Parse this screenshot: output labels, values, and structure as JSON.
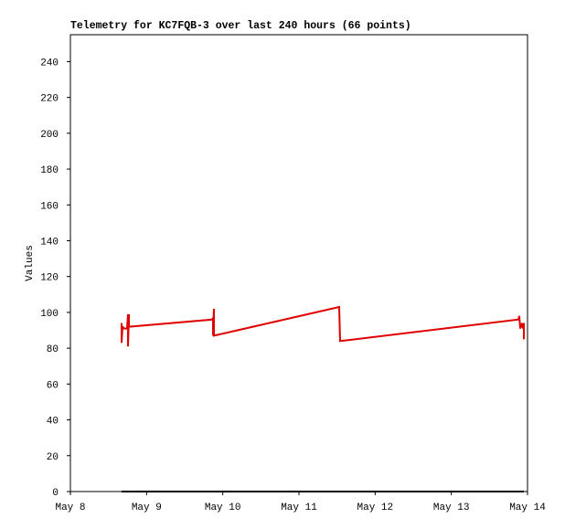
{
  "chart_data": {
    "type": "line",
    "title": "Telemetry for KC7FQB-3 over last 240 hours (66 points)",
    "y_label": "Values",
    "xlim": [
      8,
      14
    ],
    "xticks": [
      {
        "value": 8,
        "label": "May 8"
      },
      {
        "value": 9,
        "label": "May 9"
      },
      {
        "value": 10,
        "label": "May 10"
      },
      {
        "value": 11,
        "label": "May 11"
      },
      {
        "value": 12,
        "label": "May 12"
      },
      {
        "value": 13,
        "label": "May 13"
      },
      {
        "value": 14,
        "label": "May 14"
      }
    ],
    "ylim": [
      0,
      255
    ],
    "yticks": [
      0,
      20,
      40,
      60,
      80,
      100,
      120,
      140,
      160,
      180,
      200,
      220,
      240
    ],
    "series": [
      {
        "color": "#e00000",
        "x": [
          8.672,
          8.672,
          8.684,
          8.708,
          8.744,
          8.756,
          8.756,
          8.768,
          8.768,
          9.86,
          9.872,
          9.872,
          9.884,
          9.884,
          11.528,
          11.54,
          13.88,
          13.892,
          13.904,
          13.928,
          13.94,
          13.952,
          13.952
        ],
        "values": [
          94,
          83,
          92,
          91,
          91,
          99,
          81,
          99,
          92,
          96,
          97,
          87,
          102,
          87,
          103,
          84,
          96,
          98,
          91,
          94,
          91,
          94,
          85
        ]
      },
      {
        "color": "#000000",
        "x": [
          8.672,
          13.952
        ],
        "values": [
          0,
          0
        ]
      }
    ]
  }
}
